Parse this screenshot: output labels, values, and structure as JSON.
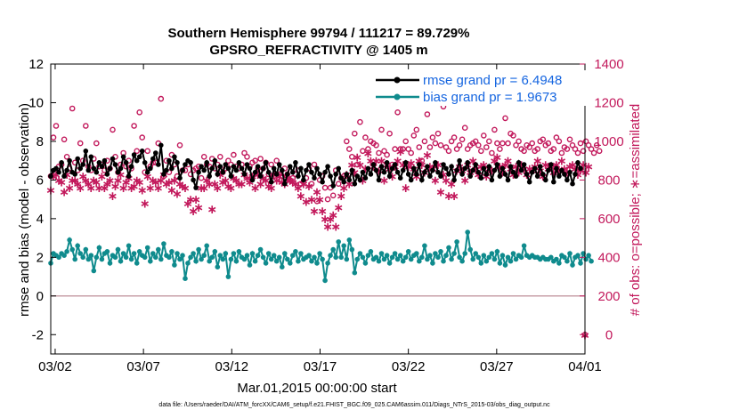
{
  "chart_data": {
    "type": "line",
    "title_line1": "Southern Hemisphere 99794 / 111217 = 89.729%",
    "title_line2": "GPSRO_REFRACTIVITY @ 1405 m",
    "xlabel": "Mar.01,2015 00:00:00 start",
    "ylabel_left": "rmse and bias (model - observation)",
    "ylabel_right": "# of obs: o=possible; ∗=assimilated",
    "footer": "data file: /Users/raeder/DAI/ATM_forcXX/CAM6_setup/f.e21.FHIST_BGC.f09_025.CAM6assim.011/Diags_NTrS_2015-03/obs_diag_output.nc",
    "x_ticks": [
      "03/02",
      "03/07",
      "03/12",
      "03/17",
      "03/22",
      "03/27",
      "04/01"
    ],
    "x_tick_days": [
      2,
      7,
      12,
      17,
      22,
      27,
      32
    ],
    "xlim": [
      1.75,
      32
    ],
    "y_left_ticks": [
      "-2",
      "0",
      "2",
      "4",
      "6",
      "8",
      "10",
      "12"
    ],
    "y_left_tick_values": [
      -2,
      0,
      2,
      4,
      6,
      8,
      10,
      12
    ],
    "ylim_left": [
      -3,
      12
    ],
    "y_right_ticks": [
      "0",
      "200",
      "400",
      "600",
      "800",
      "1000",
      "1200",
      "1400"
    ],
    "y_right_tick_values": [
      0,
      200,
      400,
      600,
      800,
      1000,
      1200,
      1400
    ],
    "ylim_right": [
      -100,
      1400
    ],
    "zero_line_value": 0,
    "legend": {
      "position": "top-right"
    },
    "colors": {
      "rmse": "#000000",
      "bias": "#0f8b8d",
      "obs": "#c2185b",
      "zero_line": "#c8a0a8"
    },
    "series": [
      {
        "name": "rmse grand pr = 6.4948",
        "role": "rmse",
        "values": [
          6.2,
          6.5,
          6.6,
          6.4,
          6.9,
          6.2,
          6.5,
          7.0,
          6.4,
          6.3,
          7.1,
          6.6,
          6.8,
          7.5,
          6.5,
          7.2,
          6.6,
          6.4,
          6.9,
          6.7,
          7.0,
          6.3,
          6.6,
          7.1,
          6.8,
          6.4,
          6.6,
          7.2,
          6.9,
          6.2,
          6.7,
          7.3,
          7.0,
          7.2,
          7.5,
          6.9,
          6.4,
          6.6,
          7.1,
          7.4,
          6.8,
          7.8,
          6.3,
          6.5,
          7.0,
          6.6,
          7.2,
          6.9,
          6.1,
          6.5,
          6.8,
          7.0,
          6.9,
          6.0,
          5.6,
          6.4,
          6.7,
          6.5,
          6.9,
          6.2,
          6.6,
          7.0,
          6.3,
          6.7,
          6.4,
          6.8,
          6.6,
          6.2,
          6.7,
          6.5,
          6.9,
          6.6,
          6.3,
          6.8,
          6.6,
          6.0,
          6.4,
          6.7,
          6.2,
          6.6,
          6.9,
          6.4,
          5.9,
          6.6,
          6.3,
          6.8,
          6.5,
          5.8,
          6.3,
          6.7,
          6.4,
          6.9,
          6.2,
          6.6,
          6.0,
          6.5,
          6.8,
          6.4,
          6.1,
          6.6,
          6.3,
          5.9,
          6.4,
          6.7,
          6.2,
          5.7,
          6.3,
          6.6,
          6.1,
          5.9,
          6.3,
          6.0,
          6.5,
          5.8,
          6.2,
          6.0,
          6.4,
          6.1,
          6.6,
          6.3,
          6.8,
          6.5,
          6.0,
          6.7,
          6.4,
          6.9,
          6.2,
          6.6,
          6.8,
          6.4,
          6.1,
          6.5,
          6.9,
          6.3,
          6.0,
          6.6,
          6.3,
          6.8,
          6.0,
          6.4,
          6.7,
          6.2,
          6.5,
          6.9,
          6.4,
          6.2,
          6.8,
          6.6,
          6.3,
          6.7,
          6.0,
          6.5,
          7.0,
          6.3,
          6.6,
          6.9,
          6.2,
          6.5,
          6.8,
          6.4,
          6.1,
          6.6,
          6.3,
          6.7,
          6.0,
          6.5,
          6.8,
          6.2,
          6.6,
          6.3,
          6.0,
          6.7,
          6.4,
          6.2,
          6.9,
          6.5,
          6.8,
          6.3,
          5.9,
          6.4,
          6.6,
          6.2,
          6.7,
          6.3,
          6.0,
          6.5,
          6.8,
          5.9,
          6.6,
          6.2,
          6.5,
          6.3,
          6.0,
          6.4,
          5.8,
          6.3,
          6.9,
          6.6
        ]
      },
      {
        "name": "bias grand pr = 1.9673",
        "role": "bias",
        "values": [
          1.7,
          2.2,
          2.1,
          2.0,
          2.2,
          2.1,
          2.3,
          2.9,
          2.4,
          1.9,
          2.6,
          2.2,
          2.0,
          2.4,
          1.9,
          2.1,
          1.3,
          2.0,
          2.5,
          1.9,
          2.2,
          2.3,
          1.7,
          2.1,
          2.0,
          2.4,
          1.8,
          2.2,
          2.0,
          2.6,
          1.9,
          2.2,
          1.7,
          2.3,
          2.1,
          2.0,
          2.5,
          1.8,
          2.2,
          2.0,
          2.4,
          1.9,
          2.7,
          2.1,
          2.0,
          2.3,
          1.6,
          2.2,
          1.9,
          2.1,
          0.9,
          1.7,
          2.0,
          2.2,
          1.8,
          2.4,
          1.9,
          2.1,
          2.6,
          1.8,
          2.0,
          2.3,
          1.5,
          2.1,
          1.9,
          2.2,
          1.0,
          1.9,
          2.2,
          1.8,
          2.3,
          2.0,
          1.9,
          2.1,
          1.6,
          2.2,
          1.8,
          2.1,
          2.4,
          2.0,
          1.7,
          2.2,
          1.9,
          2.1,
          1.8,
          2.0,
          1.5,
          2.2,
          1.9,
          1.7,
          2.1,
          2.3,
          1.8,
          2.2,
          1.9,
          2.0,
          2.1,
          1.8,
          2.0,
          1.7,
          2.2,
          1.9,
          0.8,
          1.7,
          2.1,
          2.4,
          2.0,
          2.8,
          2.0,
          2.6,
          1.9,
          2.9,
          2.4,
          1.2,
          1.9,
          2.2,
          2.0,
          1.7,
          2.1,
          2.3,
          1.9,
          2.0,
          1.8,
          2.2,
          1.9,
          2.1,
          1.7,
          2.0,
          2.2,
          1.9,
          2.1,
          1.8,
          2.0,
          2.3,
          1.9,
          2.1,
          2.2,
          1.8,
          2.0,
          2.6,
          1.9,
          2.1,
          1.7,
          2.2,
          2.0,
          2.3,
          1.8,
          2.1,
          2.5,
          1.9,
          2.2,
          2.8,
          2.0,
          1.8,
          2.2,
          3.3,
          2.4,
          1.9,
          2.2,
          2.0,
          1.7,
          2.1,
          1.8,
          2.0,
          2.2,
          1.9,
          2.3,
          1.7,
          2.1,
          1.6,
          2.0,
          1.8,
          2.2,
          1.9,
          2.1,
          2.0,
          2.6,
          2.1,
          2.0,
          2.1,
          2.0,
          2.0,
          1.9,
          2.0,
          1.9,
          1.9,
          2.0,
          1.8,
          1.9,
          1.7,
          2.1,
          2.0,
          1.8,
          2.2,
          1.6,
          2.0,
          2.1,
          1.7,
          2.2,
          1.9,
          2.1,
          1.8
        ]
      },
      {
        "name": "possible",
        "role": "obs_possible",
        "values": [
          820,
          1020,
          1080,
          870,
          880,
          1010,
          920,
          860,
          1170,
          890,
          850,
          990,
          900,
          1080,
          870,
          850,
          910,
          990,
          870,
          880,
          850,
          900,
          860,
          1060,
          920,
          840,
          880,
          940,
          870,
          900,
          860,
          1080,
          950,
          1150,
          1020,
          840,
          950,
          870,
          890,
          890,
          990,
          1220,
          820,
          900,
          840,
          930,
          880,
          820,
          980,
          850,
          850,
          880,
          830,
          850,
          860,
          870,
          810,
          920,
          880,
          870,
          910,
          860,
          880,
          920,
          840,
          860,
          900,
          880,
          930,
          870,
          860,
          880,
          940,
          920,
          870,
          890,
          900,
          860,
          910,
          860,
          890,
          830,
          880,
          820,
          900,
          830,
          820,
          860,
          830,
          800,
          810,
          830,
          850,
          780,
          790,
          810,
          860,
          780,
          880,
          690,
          800,
          820,
          760,
          700,
          760,
          720,
          850,
          780,
          810,
          820,
          1000,
          960,
          920,
          1040,
          880,
          1100,
          950,
          1020,
          960,
          1000,
          990,
          980,
          940,
          1060,
          950,
          930,
          1040,
          880,
          960,
          1150,
          960,
          960,
          1000,
          960,
          940,
          1030,
          1060,
          970,
          900,
          1000,
          1140,
          970,
          1020,
          990,
          1040,
          980,
          1180,
          970,
          950,
          1000,
          1020,
          960,
          980,
          1010,
          1070,
          960,
          980,
          990,
          1000,
          980,
          950,
          1030,
          970,
          1000,
          940,
          1060,
          990,
          960,
          990,
          1120,
          990,
          1040,
          1030,
          980,
          1000,
          960,
          950,
          980,
          970,
          990,
          950,
          960,
          1000,
          1010,
          980,
          990,
          950,
          960,
          1020,
          1000,
          940,
          970,
          960,
          1010,
          980,
          960,
          940,
          990,
          950,
          1000,
          980,
          960,
          940,
          980,
          950
        ]
      },
      {
        "name": "assimilated",
        "role": "obs_assimilated",
        "values": [
          750,
          820,
          830,
          800,
          790,
          740,
          830,
          760,
          800,
          800,
          780,
          760,
          820,
          800,
          780,
          760,
          800,
          790,
          760,
          820,
          760,
          780,
          800,
          720,
          770,
          800,
          830,
          760,
          790,
          810,
          760,
          770,
          800,
          790,
          750,
          680,
          820,
          760,
          800,
          790,
          760,
          800,
          830,
          780,
          790,
          750,
          800,
          730,
          780,
          770,
          760,
          680,
          700,
          640,
          700,
          660,
          760,
          760,
          800,
          780,
          650,
          780,
          760,
          830,
          790,
          800,
          770,
          760,
          810,
          800,
          780,
          780,
          830,
          810,
          790,
          820,
          760,
          830,
          780,
          810,
          800,
          770,
          760,
          830,
          800,
          820,
          790,
          780,
          810,
          800,
          790,
          780,
          760,
          720,
          780,
          690,
          770,
          700,
          640,
          740,
          700,
          640,
          600,
          560,
          600,
          620,
          560,
          660,
          720,
          760,
          830,
          780,
          880,
          840,
          920,
          880,
          800,
          860,
          940,
          900,
          870,
          900,
          850,
          900,
          800,
          880,
          860,
          820,
          870,
          900,
          950,
          880,
          760,
          870,
          890,
          860,
          820,
          900,
          880,
          840,
          930,
          870,
          860,
          800,
          880,
          740,
          830,
          800,
          720,
          780,
          720,
          850,
          870,
          850,
          800,
          880,
          840,
          900,
          860,
          830,
          870,
          880,
          820,
          860,
          850,
          900,
          920,
          870,
          840,
          880,
          900,
          860,
          830,
          870,
          840,
          880,
          860,
          830,
          860,
          850,
          870,
          900,
          850,
          820,
          880,
          860,
          870,
          840,
          880,
          850,
          900,
          860,
          840,
          870,
          880,
          860,
          830,
          850,
          880,
          840,
          870
        ]
      }
    ],
    "extra_points": [
      {
        "role": "obs_assimilated",
        "day": 32.0,
        "value": 0
      }
    ]
  }
}
